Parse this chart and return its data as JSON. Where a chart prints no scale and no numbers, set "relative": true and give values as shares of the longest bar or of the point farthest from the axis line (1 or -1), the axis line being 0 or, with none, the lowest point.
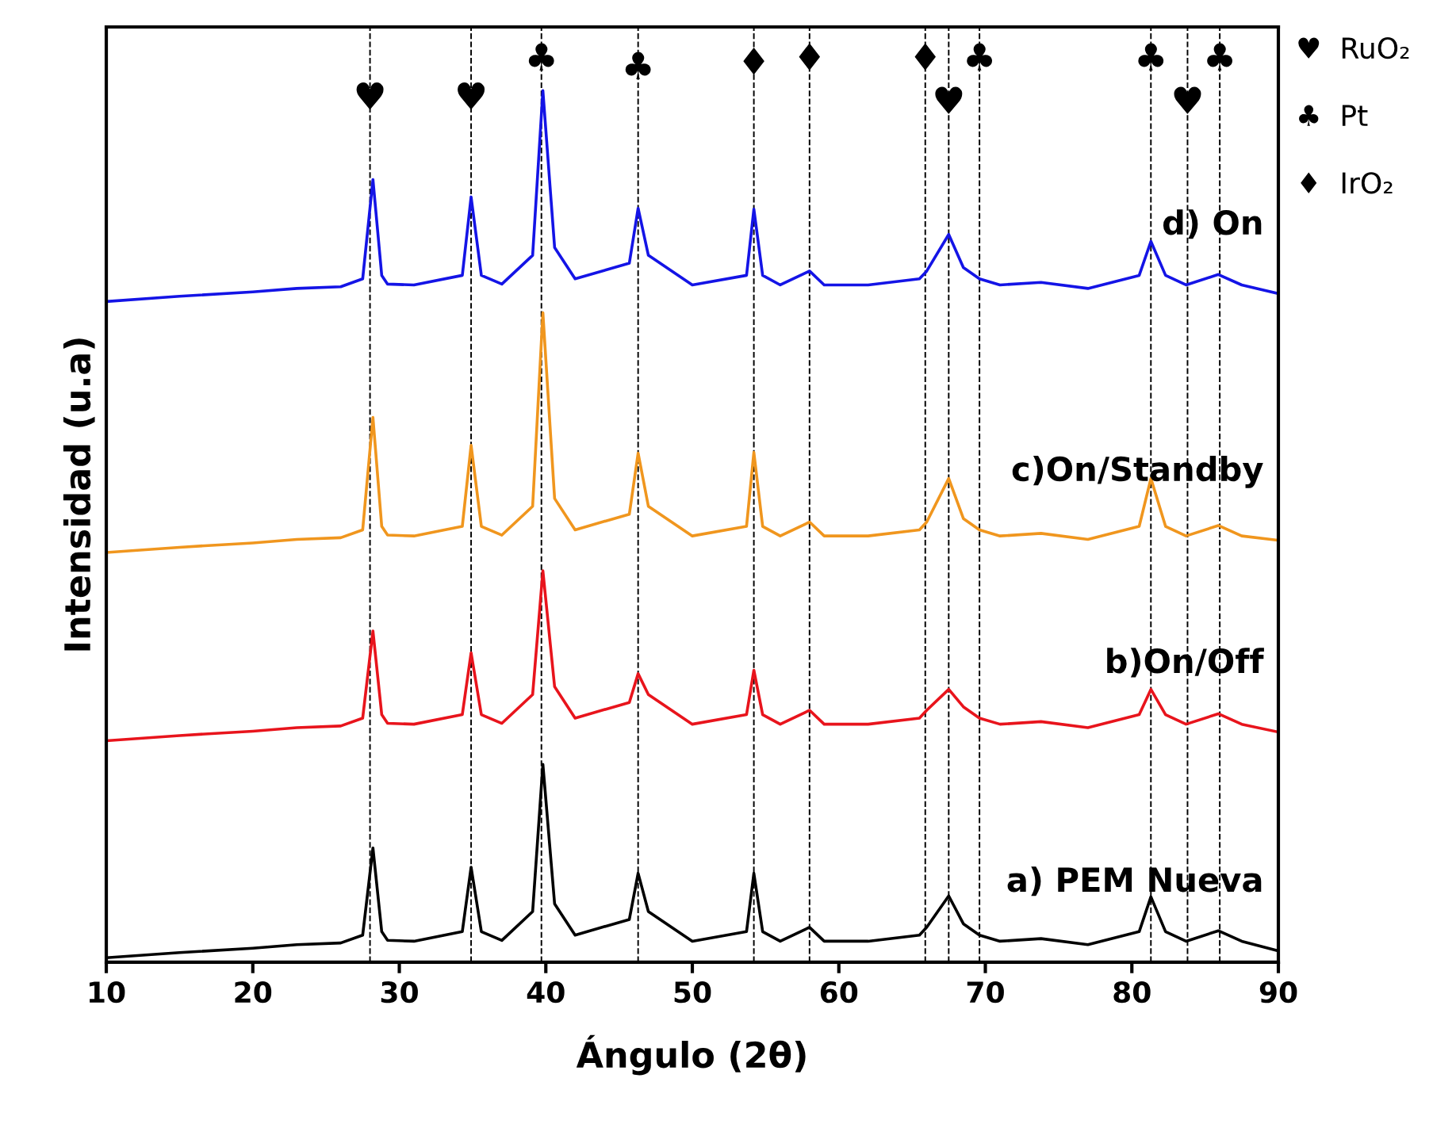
{
  "chart_data": {
    "type": "line",
    "relative": true,
    "xlabel": "Ángulo (2θ)",
    "ylabel": "Intensidad (u.a)",
    "x": [
      10,
      15,
      20,
      23,
      26,
      27.5,
      28.2,
      28.8,
      29.2,
      31,
      34.3,
      34.9,
      35.6,
      37,
      39.1,
      39.8,
      40.6,
      42,
      45.7,
      46.3,
      47,
      50,
      53.7,
      54.2,
      54.8,
      56,
      58,
      59,
      62,
      65.5,
      66,
      67.5,
      68.5,
      69.6,
      71,
      73.8,
      77,
      80.5,
      81.3,
      82.3,
      83.7,
      85.9,
      87.5,
      90
    ],
    "xlim": [
      10,
      90
    ],
    "xticks": [
      10,
      20,
      30,
      40,
      50,
      60,
      70,
      80,
      90
    ],
    "tick_labels": "x",
    "grid": false,
    "legend": false,
    "marker": "none",
    "line_style": "solid",
    "series": [
      {
        "name": "a) PEM Nueva",
        "color": "#000000",
        "values": [
          0.005,
          0.011,
          0.016,
          0.02,
          0.022,
          0.031,
          0.131,
          0.035,
          0.025,
          0.024,
          0.035,
          0.109,
          0.035,
          0.025,
          0.058,
          0.227,
          0.067,
          0.031,
          0.049,
          0.102,
          0.058,
          0.024,
          0.035,
          0.102,
          0.035,
          0.024,
          0.04,
          0.024,
          0.024,
          0.031,
          0.04,
          0.076,
          0.044,
          0.031,
          0.024,
          0.027,
          0.02,
          0.035,
          0.075,
          0.035,
          0.024,
          0.036,
          0.024,
          0.013
        ]
      },
      {
        "name": "b)On/Off",
        "color": "#e8141c",
        "values": [
          0.254,
          0.26,
          0.265,
          0.269,
          0.271,
          0.28,
          0.38,
          0.284,
          0.274,
          0.273,
          0.284,
          0.355,
          0.284,
          0.274,
          0.307,
          0.449,
          0.316,
          0.28,
          0.298,
          0.331,
          0.307,
          0.273,
          0.284,
          0.335,
          0.284,
          0.273,
          0.289,
          0.273,
          0.273,
          0.28,
          0.289,
          0.313,
          0.293,
          0.28,
          0.273,
          0.276,
          0.269,
          0.284,
          0.313,
          0.284,
          0.273,
          0.285,
          0.273,
          0.264
        ]
      },
      {
        "name": "c)On/Standby",
        "color": "#f0961e",
        "values": [
          0.47,
          0.476,
          0.481,
          0.485,
          0.487,
          0.496,
          0.625,
          0.5,
          0.49,
          0.489,
          0.5,
          0.593,
          0.5,
          0.49,
          0.523,
          0.745,
          0.532,
          0.496,
          0.514,
          0.584,
          0.523,
          0.489,
          0.5,
          0.585,
          0.5,
          0.489,
          0.505,
          0.489,
          0.489,
          0.496,
          0.505,
          0.555,
          0.509,
          0.496,
          0.489,
          0.492,
          0.485,
          0.5,
          0.555,
          0.5,
          0.489,
          0.501,
          0.489,
          0.484
        ]
      },
      {
        "name": "d) On",
        "color": "#1414e6",
        "values": [
          0.758,
          0.764,
          0.769,
          0.773,
          0.775,
          0.784,
          0.898,
          0.788,
          0.778,
          0.777,
          0.788,
          0.878,
          0.788,
          0.778,
          0.811,
          1,
          0.82,
          0.784,
          0.802,
          0.865,
          0.811,
          0.777,
          0.788,
          0.864,
          0.788,
          0.777,
          0.793,
          0.777,
          0.777,
          0.784,
          0.793,
          0.835,
          0.797,
          0.784,
          0.777,
          0.78,
          0.773,
          0.788,
          0.827,
          0.788,
          0.777,
          0.789,
          0.777,
          0.767
        ]
      }
    ],
    "ref_lines": [
      {
        "axis": "x",
        "value": 28,
        "color": "#000000",
        "line_style": "dashed"
      },
      {
        "axis": "x",
        "value": 34.9,
        "color": "#000000",
        "line_style": "dashed"
      },
      {
        "axis": "x",
        "value": 39.7,
        "color": "#000000",
        "line_style": "dashed"
      },
      {
        "axis": "x",
        "value": 46.3,
        "color": "#000000",
        "line_style": "dashed"
      },
      {
        "axis": "x",
        "value": 54.2,
        "color": "#000000",
        "line_style": "dashed"
      },
      {
        "axis": "x",
        "value": 58,
        "color": "#000000",
        "line_style": "dashed"
      },
      {
        "axis": "x",
        "value": 65.9,
        "color": "#000000",
        "line_style": "dashed"
      },
      {
        "axis": "x",
        "value": 67.5,
        "color": "#000000",
        "line_style": "dashed"
      },
      {
        "axis": "x",
        "value": 69.6,
        "color": "#000000",
        "line_style": "dashed"
      },
      {
        "axis": "x",
        "value": 81.3,
        "color": "#000000",
        "line_style": "dashed"
      },
      {
        "axis": "x",
        "value": 83.8,
        "color": "#000000",
        "line_style": "dashed"
      },
      {
        "axis": "x",
        "value": 86,
        "color": "#000000",
        "line_style": "dashed"
      }
    ],
    "annotations": [
      {
        "text": "♥",
        "x": 28,
        "y": 0.99
      },
      {
        "text": "♥",
        "x": 34.9,
        "y": 0.99
      },
      {
        "text": "♣",
        "x": 39.7,
        "y": 1.035
      },
      {
        "text": "♣",
        "x": 46.3,
        "y": 1.025
      },
      {
        "text": "♦",
        "x": 54.2,
        "y": 1.03
      },
      {
        "text": "♦",
        "x": 58,
        "y": 1.035
      },
      {
        "text": "♦",
        "x": 65.9,
        "y": 1.035
      },
      {
        "text": "♥",
        "x": 67.5,
        "y": 0.985
      },
      {
        "text": "♣",
        "x": 69.6,
        "y": 1.035
      },
      {
        "text": "♣",
        "x": 81.3,
        "y": 1.035
      },
      {
        "text": "♥",
        "x": 83.8,
        "y": 0.985
      },
      {
        "text": "♣",
        "x": 86,
        "y": 1.035
      },
      "♥  RuO₂",
      "♣  Pt",
      "♦  IrO₂"
    ]
  }
}
